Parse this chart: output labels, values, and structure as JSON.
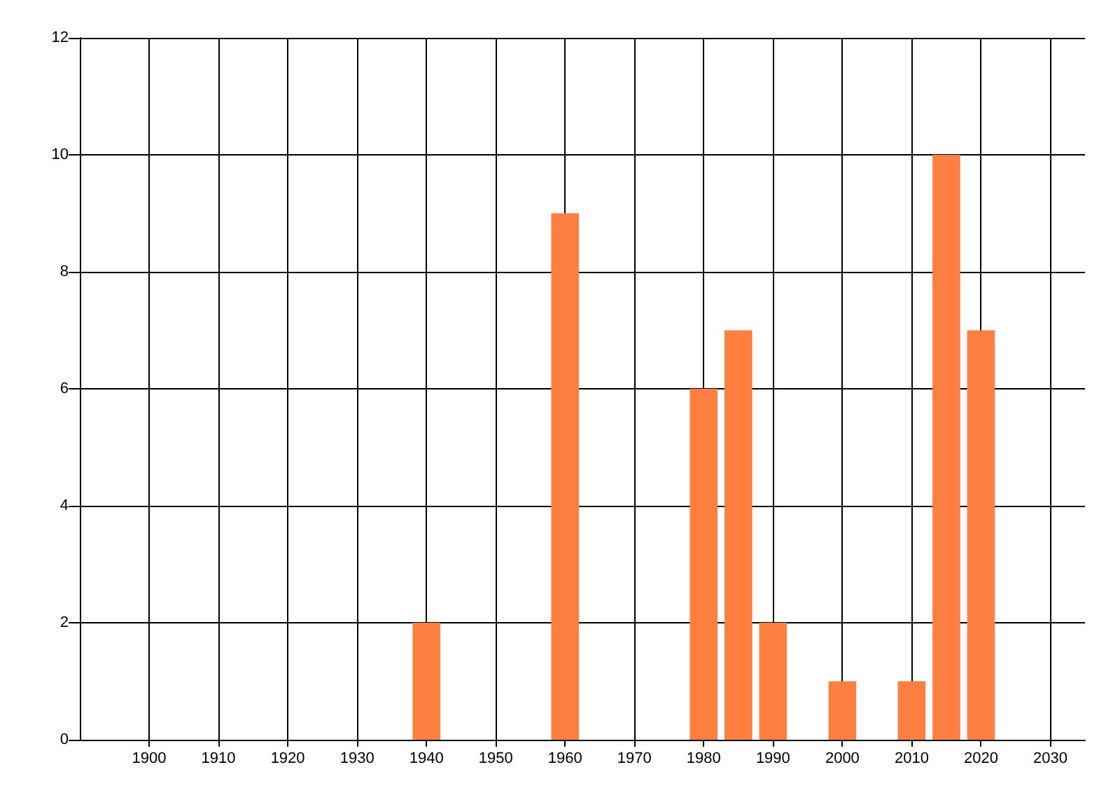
{
  "chart_data": {
    "type": "bar",
    "x": [
      1940,
      1960,
      1980,
      1985,
      1990,
      2000,
      2010,
      2015,
      2020
    ],
    "values": [
      2,
      9,
      6,
      7,
      2,
      1,
      1,
      10,
      7
    ],
    "color": "#ff7f40",
    "xlim": [
      1890,
      2035
    ],
    "xticks": [
      1900,
      1910,
      1920,
      1930,
      1940,
      1950,
      1960,
      1970,
      1980,
      1990,
      2000,
      2010,
      2020,
      2030
    ],
    "ylim": [
      0,
      12
    ],
    "yticks": [
      0,
      2,
      4,
      6,
      8,
      10,
      12
    ],
    "grid": true
  }
}
